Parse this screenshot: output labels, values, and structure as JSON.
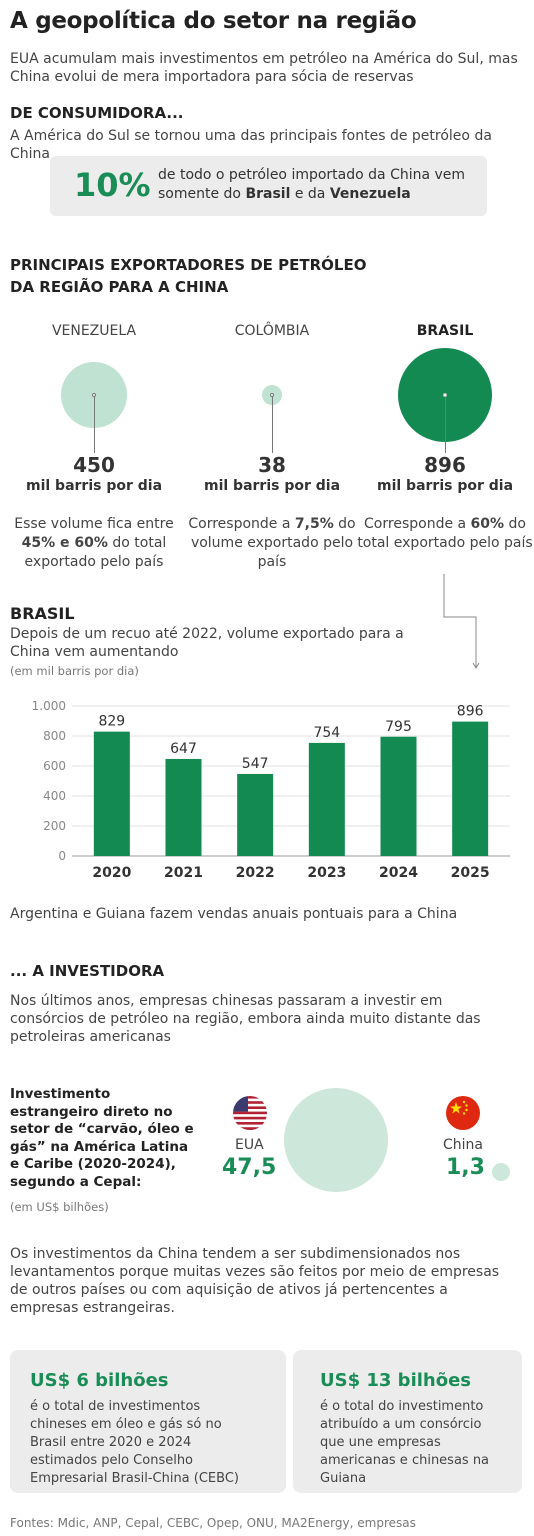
{
  "header": {
    "title": "A geopolítica do setor na região",
    "subtitle": "EUA acumulam mais investimentos em petróleo na América do Sul, mas China evolui de mera importadora para sócia de reservas"
  },
  "consumer": {
    "heading": "DE CONSUMIDORA...",
    "text": "A América do Sul se tornou uma das principais fontes de petróleo da China",
    "callout_value": "10%",
    "callout_text_a": "de todo o petróleo importado da China vem somente do ",
    "callout_brasil": "Brasil",
    "callout_text_b": " e da ",
    "callout_venezuela": "Venezuela"
  },
  "exporters": {
    "heading_line1": "PRINCIPAIS EXPORTADORES DE PETRÓLEO",
    "heading_line2": "DA REGIÃO PARA A CHINA",
    "unit": "mil barris por dia",
    "items": [
      {
        "name": "VENEZUELA",
        "value": "450",
        "desc_a": "Esse volume fica entre ",
        "desc_strong": "45% e 60%",
        "desc_b": " do total exportado pelo país",
        "color": "#bfe2d2"
      },
      {
        "name": "COLÔMBIA",
        "value": "38",
        "desc_a": "Corresponde a ",
        "desc_strong": "7,5%",
        "desc_b": " do volume exportado pelo país",
        "color": "#bfe2d2"
      },
      {
        "name": "BRASIL",
        "value": "896",
        "desc_a": "Corresponde a ",
        "desc_strong": "60%",
        "desc_b": " do total exportado pelo país",
        "color": "#138a52"
      }
    ]
  },
  "brasil": {
    "heading": "BRASIL",
    "subtitle": "Depois de um recuo até 2022, volume exportado para a China vem aumentando",
    "unit_note": "(em mil barris por dia)"
  },
  "chart_data": {
    "type": "bar",
    "categories": [
      "2020",
      "2021",
      "2022",
      "2023",
      "2024",
      "2025"
    ],
    "values": [
      829,
      647,
      547,
      754,
      795,
      896
    ],
    "data_labels": [
      "829",
      "647",
      "547",
      "754",
      "795",
      "896"
    ],
    "ylim": [
      0,
      1000
    ],
    "yticks": [
      0,
      200,
      400,
      600,
      800,
      1000
    ],
    "ytick_labels": [
      "0",
      "200",
      "400",
      "600",
      "800",
      "1.000"
    ],
    "grid": true,
    "bar_color": "#138a52"
  },
  "note": "Argentina e Guiana fazem vendas anuais pontuais para a China",
  "investor": {
    "heading": "... A INVESTIDORA",
    "text": "Nos últimos anos, empresas chinesas passaram a investir em consórcios de petróleo na região, embora ainda muito distante das petroleiras americanas",
    "fdi_label": "Investimento estrangeiro direto no setor de “carvão, óleo e gás” na América Latina e Caribe (2020-2024), segundo a Cepal:",
    "fdi_unit": "(em US$ bilhões)",
    "usa_name": "EUA",
    "usa_value": "47,5",
    "china_name": "China",
    "china_value": "1,3",
    "circle_color": "#cde8da"
  },
  "para2": "Os investimentos da China tendem a ser subdimensionados nos levantamentos porque muitas vezes são feitos por meio de empresas de outros países ou com aquisição de ativos já pertencentes a empresas estrangeiras.",
  "cards": [
    {
      "value": "US$ 6 bilhões",
      "text": "é o total de investimentos chineses em óleo e gás só no Brasil entre 2020 e 2024 estimados pelo Conselho Empresarial Brasil-China (CEBC)"
    },
    {
      "value": "US$ 13 bilhões",
      "text": "é o total do investimento atribuído a um consórcio que une empresas americanas e chinesas na Guiana"
    }
  ],
  "sources": "Fontes: Mdic, ANP, Cepal, CEBC, Opep, ONU, MA2Energy, empresas",
  "colors": {
    "accent": "#138a52",
    "text_green": "#1a8d57",
    "light_green": "#bfe2d2",
    "panel": "#ececed"
  }
}
